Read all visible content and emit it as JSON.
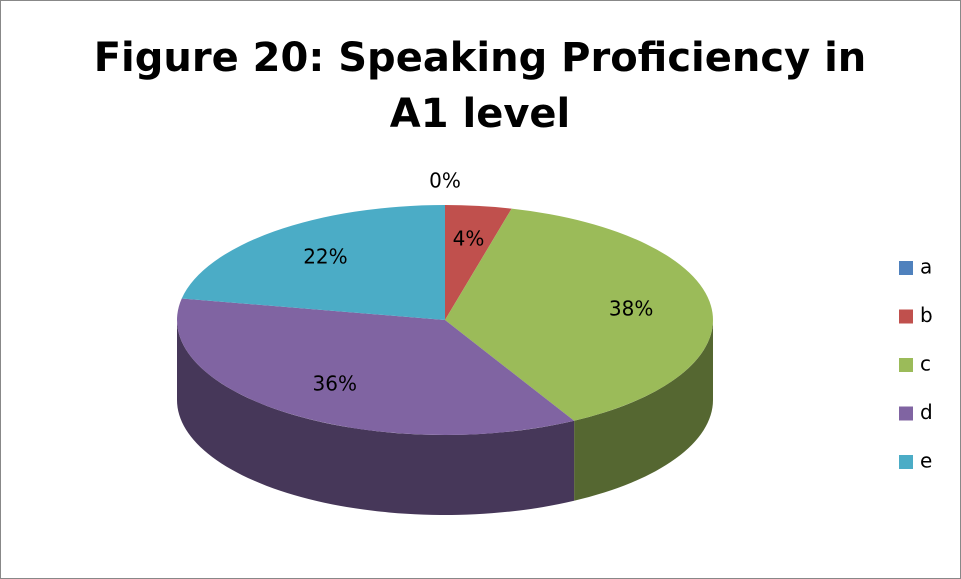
{
  "chart_data": {
    "type": "pie",
    "title": "Figure 20: Speaking Proficiency in A1 level",
    "categories": [
      "a",
      "b",
      "c",
      "d",
      "e"
    ],
    "values": [
      0,
      4,
      38,
      36,
      22
    ],
    "value_labels": [
      "0%",
      "4%",
      "38%",
      "36%",
      "22%"
    ],
    "colors": [
      "#4f81bd",
      "#c0504d",
      "#9bbb59",
      "#8064a2",
      "#4bacc6"
    ],
    "legend": "right"
  }
}
